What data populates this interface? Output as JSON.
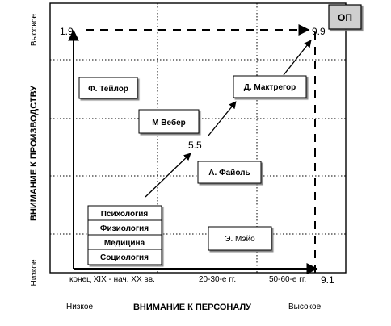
{
  "diagram": {
    "badge": "ОП",
    "corners": {
      "top_left": "1.9",
      "top_right": "9.9",
      "center": "5.5",
      "bottom_right": "9.1"
    },
    "y_axis": {
      "title": "ВНИМАНИЕ К ПРОИЗВОДСТВУ",
      "high": "Высокое",
      "low": "Низкое"
    },
    "x_axis": {
      "title": "ВНИМАНИЕ К ПЕРСОНАЛУ",
      "low": "Низкое",
      "high": "Высокое"
    },
    "periods": [
      "конец XIX - нач. XX вв.",
      "20-30-е гг.",
      "50-60-е гг."
    ],
    "boxes": {
      "taylor": "Ф. Тейлор",
      "weber": "М Вебер",
      "mcgregor": "Д. Мактрегор",
      "fayol": "А. Файоль",
      "mayo": "Э. Мэйо"
    },
    "stack": [
      "Психология",
      "Физиология",
      "Медицина",
      "Социология"
    ]
  }
}
